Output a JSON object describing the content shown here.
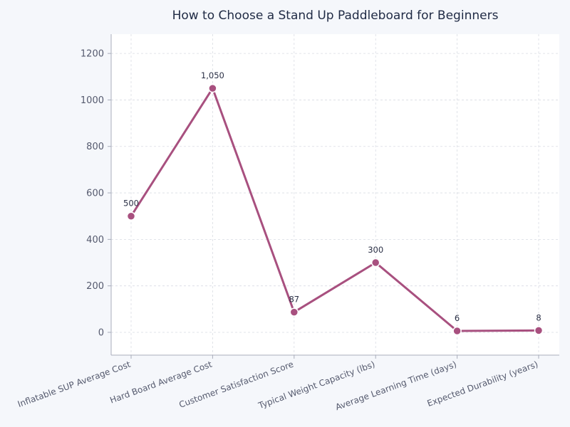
{
  "chart_data": {
    "type": "line",
    "title": "How to Choose a Stand Up Paddleboard for Beginners",
    "xlabel": "",
    "ylabel": "",
    "categories": [
      "Inflatable SUP Average Cost",
      "Hard Board Average Cost",
      "Customer Satisfaction Score",
      "Typical Weight Capacity (lbs)",
      "Average Learning Time (days)",
      "Expected Durability (years)"
    ],
    "values": [
      500,
      1050,
      87,
      300,
      6,
      8
    ],
    "data_labels": [
      "500",
      "1,050",
      "87",
      "300",
      "6",
      "8"
    ],
    "yticks": [
      0,
      200,
      400,
      600,
      800,
      1000,
      1200
    ],
    "ylim": [
      -98,
      1283
    ],
    "grid": true,
    "legend": false,
    "colors": {
      "line": "#a8507f",
      "background": "#f5f7fb",
      "plot_bg": "#ffffff",
      "grid": "#d9dce3",
      "axis": "#a9adbb",
      "tick_text": "#555a6e",
      "label_text": "#2a2f45"
    }
  }
}
